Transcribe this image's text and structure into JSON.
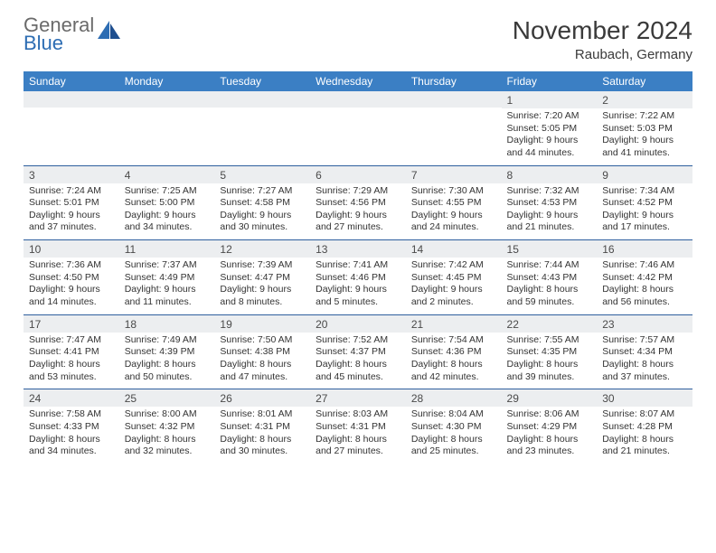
{
  "brand": {
    "text1": "General",
    "text2": "Blue"
  },
  "title": "November 2024",
  "subtitle": "Raubach, Germany",
  "colors": {
    "header_bg": "#3b7fc4",
    "header_fg": "#ffffff",
    "rule": "#2e5f9e",
    "daynum_bg": "#eceef0",
    "text": "#333333",
    "logo_gray": "#6a6a6a",
    "logo_blue": "#2d6db3"
  },
  "day_labels": [
    "Sunday",
    "Monday",
    "Tuesday",
    "Wednesday",
    "Thursday",
    "Friday",
    "Saturday"
  ],
  "weeks": [
    [
      {
        "n": "",
        "sr": "",
        "ss": "",
        "dl": ""
      },
      {
        "n": "",
        "sr": "",
        "ss": "",
        "dl": ""
      },
      {
        "n": "",
        "sr": "",
        "ss": "",
        "dl": ""
      },
      {
        "n": "",
        "sr": "",
        "ss": "",
        "dl": ""
      },
      {
        "n": "",
        "sr": "",
        "ss": "",
        "dl": ""
      },
      {
        "n": "1",
        "sr": "Sunrise: 7:20 AM",
        "ss": "Sunset: 5:05 PM",
        "dl": "Daylight: 9 hours and 44 minutes."
      },
      {
        "n": "2",
        "sr": "Sunrise: 7:22 AM",
        "ss": "Sunset: 5:03 PM",
        "dl": "Daylight: 9 hours and 41 minutes."
      }
    ],
    [
      {
        "n": "3",
        "sr": "Sunrise: 7:24 AM",
        "ss": "Sunset: 5:01 PM",
        "dl": "Daylight: 9 hours and 37 minutes."
      },
      {
        "n": "4",
        "sr": "Sunrise: 7:25 AM",
        "ss": "Sunset: 5:00 PM",
        "dl": "Daylight: 9 hours and 34 minutes."
      },
      {
        "n": "5",
        "sr": "Sunrise: 7:27 AM",
        "ss": "Sunset: 4:58 PM",
        "dl": "Daylight: 9 hours and 30 minutes."
      },
      {
        "n": "6",
        "sr": "Sunrise: 7:29 AM",
        "ss": "Sunset: 4:56 PM",
        "dl": "Daylight: 9 hours and 27 minutes."
      },
      {
        "n": "7",
        "sr": "Sunrise: 7:30 AM",
        "ss": "Sunset: 4:55 PM",
        "dl": "Daylight: 9 hours and 24 minutes."
      },
      {
        "n": "8",
        "sr": "Sunrise: 7:32 AM",
        "ss": "Sunset: 4:53 PM",
        "dl": "Daylight: 9 hours and 21 minutes."
      },
      {
        "n": "9",
        "sr": "Sunrise: 7:34 AM",
        "ss": "Sunset: 4:52 PM",
        "dl": "Daylight: 9 hours and 17 minutes."
      }
    ],
    [
      {
        "n": "10",
        "sr": "Sunrise: 7:36 AM",
        "ss": "Sunset: 4:50 PM",
        "dl": "Daylight: 9 hours and 14 minutes."
      },
      {
        "n": "11",
        "sr": "Sunrise: 7:37 AM",
        "ss": "Sunset: 4:49 PM",
        "dl": "Daylight: 9 hours and 11 minutes."
      },
      {
        "n": "12",
        "sr": "Sunrise: 7:39 AM",
        "ss": "Sunset: 4:47 PM",
        "dl": "Daylight: 9 hours and 8 minutes."
      },
      {
        "n": "13",
        "sr": "Sunrise: 7:41 AM",
        "ss": "Sunset: 4:46 PM",
        "dl": "Daylight: 9 hours and 5 minutes."
      },
      {
        "n": "14",
        "sr": "Sunrise: 7:42 AM",
        "ss": "Sunset: 4:45 PM",
        "dl": "Daylight: 9 hours and 2 minutes."
      },
      {
        "n": "15",
        "sr": "Sunrise: 7:44 AM",
        "ss": "Sunset: 4:43 PM",
        "dl": "Daylight: 8 hours and 59 minutes."
      },
      {
        "n": "16",
        "sr": "Sunrise: 7:46 AM",
        "ss": "Sunset: 4:42 PM",
        "dl": "Daylight: 8 hours and 56 minutes."
      }
    ],
    [
      {
        "n": "17",
        "sr": "Sunrise: 7:47 AM",
        "ss": "Sunset: 4:41 PM",
        "dl": "Daylight: 8 hours and 53 minutes."
      },
      {
        "n": "18",
        "sr": "Sunrise: 7:49 AM",
        "ss": "Sunset: 4:39 PM",
        "dl": "Daylight: 8 hours and 50 minutes."
      },
      {
        "n": "19",
        "sr": "Sunrise: 7:50 AM",
        "ss": "Sunset: 4:38 PM",
        "dl": "Daylight: 8 hours and 47 minutes."
      },
      {
        "n": "20",
        "sr": "Sunrise: 7:52 AM",
        "ss": "Sunset: 4:37 PM",
        "dl": "Daylight: 8 hours and 45 minutes."
      },
      {
        "n": "21",
        "sr": "Sunrise: 7:54 AM",
        "ss": "Sunset: 4:36 PM",
        "dl": "Daylight: 8 hours and 42 minutes."
      },
      {
        "n": "22",
        "sr": "Sunrise: 7:55 AM",
        "ss": "Sunset: 4:35 PM",
        "dl": "Daylight: 8 hours and 39 minutes."
      },
      {
        "n": "23",
        "sr": "Sunrise: 7:57 AM",
        "ss": "Sunset: 4:34 PM",
        "dl": "Daylight: 8 hours and 37 minutes."
      }
    ],
    [
      {
        "n": "24",
        "sr": "Sunrise: 7:58 AM",
        "ss": "Sunset: 4:33 PM",
        "dl": "Daylight: 8 hours and 34 minutes."
      },
      {
        "n": "25",
        "sr": "Sunrise: 8:00 AM",
        "ss": "Sunset: 4:32 PM",
        "dl": "Daylight: 8 hours and 32 minutes."
      },
      {
        "n": "26",
        "sr": "Sunrise: 8:01 AM",
        "ss": "Sunset: 4:31 PM",
        "dl": "Daylight: 8 hours and 30 minutes."
      },
      {
        "n": "27",
        "sr": "Sunrise: 8:03 AM",
        "ss": "Sunset: 4:31 PM",
        "dl": "Daylight: 8 hours and 27 minutes."
      },
      {
        "n": "28",
        "sr": "Sunrise: 8:04 AM",
        "ss": "Sunset: 4:30 PM",
        "dl": "Daylight: 8 hours and 25 minutes."
      },
      {
        "n": "29",
        "sr": "Sunrise: 8:06 AM",
        "ss": "Sunset: 4:29 PM",
        "dl": "Daylight: 8 hours and 23 minutes."
      },
      {
        "n": "30",
        "sr": "Sunrise: 8:07 AM",
        "ss": "Sunset: 4:28 PM",
        "dl": "Daylight: 8 hours and 21 minutes."
      }
    ]
  ]
}
